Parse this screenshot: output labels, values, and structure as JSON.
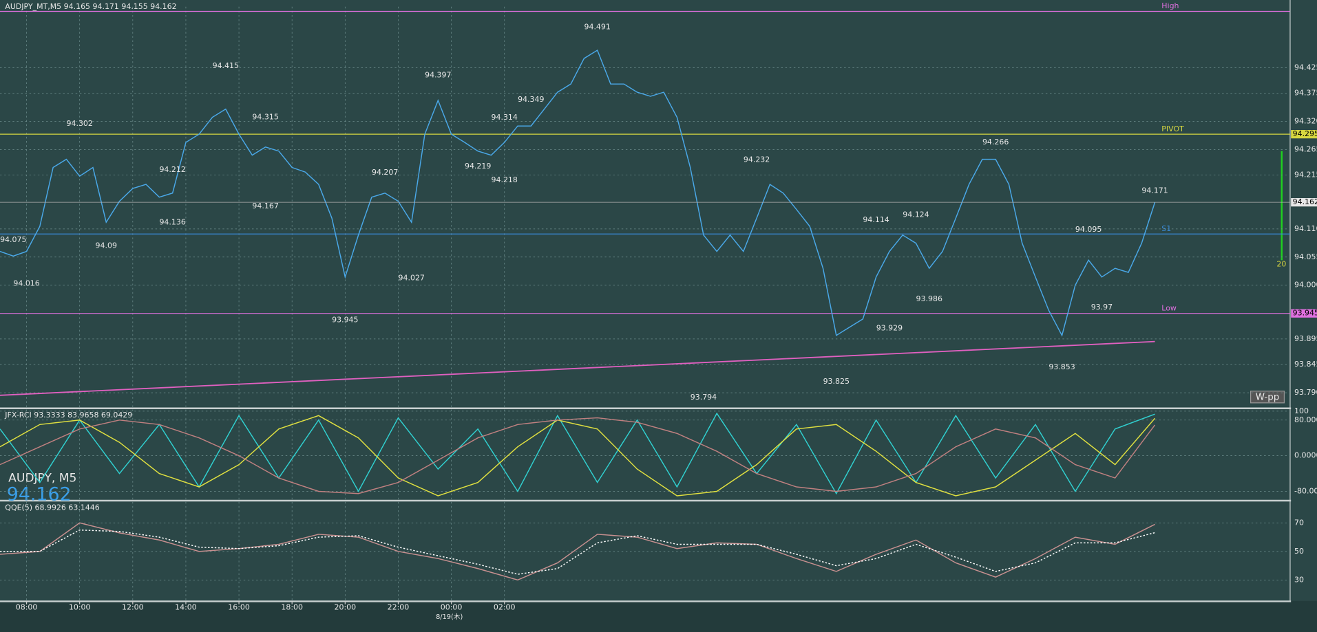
{
  "chart_data": [
    {
      "type": "line",
      "title": "AUDJPY_MT,M5  94.165 94.171 94.155 94.162",
      "series": [
        {
          "color": "#4aa8e8",
          "values": [
            94.066,
            94.057,
            94.066,
            94.115,
            94.23,
            94.246,
            94.213,
            94.23,
            94.123,
            94.164,
            94.189,
            94.197,
            94.172,
            94.18,
            94.279,
            94.295,
            94.328,
            94.344,
            94.295,
            94.254,
            94.27,
            94.262,
            94.23,
            94.221,
            94.197,
            94.131,
            94.016,
            94.098,
            94.172,
            94.18,
            94.164,
            94.123,
            94.295,
            94.361,
            94.295,
            94.279,
            94.262,
            94.254,
            94.279,
            94.311,
            94.311,
            94.344,
            94.377,
            94.393,
            94.443,
            94.459,
            94.393,
            94.393,
            94.377,
            94.369,
            94.377,
            94.328,
            94.23,
            94.098,
            94.066,
            94.098,
            94.066,
            94.131,
            94.197,
            94.18,
            94.148,
            94.115,
            94.033,
            93.902,
            93.918,
            93.934,
            94.016,
            94.066,
            94.098,
            94.082,
            94.033,
            94.066,
            94.131,
            94.197,
            94.246,
            94.246,
            94.197,
            94.082,
            94.016,
            93.951,
            93.902,
            94.0,
            94.049,
            94.016,
            94.033,
            94.025,
            94.082,
            94.162
          ]
        }
      ],
      "trendline": {
        "color": "#e060c0",
        "from": [
          0,
          93.785
        ],
        "to": [
          87,
          93.89
        ]
      },
      "levels": [
        {
          "name": "High",
          "value": 94.535,
          "color": "#e070e0",
          "axis_label": false
        },
        {
          "name": "PIVOT",
          "value": 94.295,
          "color": "#d8d840",
          "axis_label": true
        },
        {
          "name": "S1",
          "value": 94.1,
          "color": "#3a8ad8",
          "axis_label": false
        },
        {
          "name": "Low",
          "value": 93.945,
          "color": "#e070e0",
          "axis_label": true
        }
      ],
      "last": 94.162,
      "annotations": [
        {
          "i": 45,
          "value": 94.491,
          "kind": "high"
        },
        {
          "i": 17,
          "value": 94.415,
          "kind": "high"
        },
        {
          "i": 6,
          "value": 94.302,
          "kind": "high"
        },
        {
          "i": 20,
          "value": 94.315,
          "kind": "high"
        },
        {
          "i": 33,
          "value": 94.397,
          "kind": "high"
        },
        {
          "i": 38,
          "value": 94.314,
          "kind": "high"
        },
        {
          "i": 40,
          "value": 94.349,
          "kind": "high"
        },
        {
          "i": 57,
          "value": 94.232,
          "kind": "high"
        },
        {
          "i": 75,
          "value": 94.266,
          "kind": "high"
        },
        {
          "i": 87,
          "value": 94.171,
          "kind": "high"
        },
        {
          "i": 13,
          "value": 94.212,
          "kind": "high"
        },
        {
          "i": 29,
          "value": 94.207,
          "kind": "high"
        },
        {
          "i": 36,
          "value": 94.219,
          "kind": "high"
        },
        {
          "i": 38,
          "value": 94.218,
          "kind": "low"
        },
        {
          "i": 66,
          "value": 94.114,
          "kind": "high"
        },
        {
          "i": 69,
          "value": 94.124,
          "kind": "high"
        },
        {
          "i": 82,
          "value": 94.095,
          "kind": "high"
        },
        {
          "i": 1,
          "value": 94.075,
          "kind": "high"
        },
        {
          "i": 2,
          "value": 94.016,
          "kind": "low"
        },
        {
          "i": 8,
          "value": 94.09,
          "kind": "low"
        },
        {
          "i": 13,
          "value": 94.136,
          "kind": "low"
        },
        {
          "i": 20,
          "value": 94.167,
          "kind": "low"
        },
        {
          "i": 26,
          "value": 93.945,
          "kind": "low"
        },
        {
          "i": 31,
          "value": 94.027,
          "kind": "low"
        },
        {
          "i": 53,
          "value": 93.794,
          "kind": "low"
        },
        {
          "i": 63,
          "value": 93.825,
          "kind": "low"
        },
        {
          "i": 67,
          "value": 93.929,
          "kind": "low"
        },
        {
          "i": 70,
          "value": 93.986,
          "kind": "low"
        },
        {
          "i": 80,
          "value": 93.853,
          "kind": "low"
        },
        {
          "i": 83,
          "value": 93.97,
          "kind": "low"
        }
      ],
      "ylim": [
        93.762,
        94.544
      ],
      "yticks": [
        94.425,
        94.375,
        {
          "value": 94.32,
          "label": "94.320"
        },
        94.265,
        94.215,
        {
          "value": 94.11,
          "label": "94.110"
        },
        94.055,
        {
          "value": 94,
          "label": "94.000"
        },
        93.895,
        93.845,
        {
          "value": 93.79,
          "label": "93.790"
        }
      ],
      "xticks": [
        {
          "value": 2,
          "label": "08:00"
        },
        {
          "value": 6,
          "label": "10:00"
        },
        {
          "value": 10,
          "label": "12:00"
        },
        {
          "value": 14,
          "label": "14:00"
        },
        {
          "value": 18,
          "label": "16:00"
        },
        {
          "value": 22,
          "label": "18:00"
        },
        {
          "value": 26,
          "label": "20:00"
        },
        {
          "value": 30,
          "label": "22:00"
        },
        {
          "value": 34,
          "label": "00:00"
        },
        {
          "value": 38,
          "label": "02:00"
        }
      ],
      "grid": true
    },
    {
      "type": "line",
      "title": "JFX-RCI 93.3333 83.9658 69.0429",
      "series": [
        {
          "color": "#30d0d0",
          "values": [
            60,
            -60,
            80,
            -40,
            70,
            -70,
            90,
            -50,
            80,
            -80,
            85,
            -30,
            60,
            -80,
            90,
            -60,
            80,
            -70,
            95,
            -40,
            70,
            -85,
            80,
            -60,
            90,
            -50,
            70,
            -80,
            60,
            93.3333
          ]
        },
        {
          "color": "#e0e040",
          "values": [
            20,
            70,
            80,
            30,
            -40,
            -70,
            -20,
            60,
            90,
            40,
            -50,
            -90,
            -60,
            20,
            80,
            60,
            -30,
            -90,
            -80,
            -20,
            60,
            70,
            10,
            -60,
            -90,
            -70,
            -10,
            50,
            -20,
            83.9658
          ]
        },
        {
          "color": "#c08080",
          "values": [
            -20,
            20,
            60,
            80,
            70,
            40,
            0,
            -50,
            -80,
            -85,
            -60,
            -10,
            40,
            70,
            80,
            85,
            75,
            50,
            10,
            -40,
            -70,
            -80,
            -70,
            -40,
            20,
            60,
            40,
            -20,
            -50,
            69.0429
          ]
        }
      ],
      "ylim": [
        -98,
        103.5
      ],
      "yticks": [
        100,
        {
          "value": 80,
          "label": "80.0000"
        },
        {
          "value": 0,
          "label": "0.0000"
        },
        {
          "value": -80,
          "label": "-80.0000"
        }
      ],
      "grid": true
    },
    {
      "type": "line",
      "title": "QQE(5) 68.9926 63.1446",
      "series": [
        {
          "color": "#c89090",
          "values": [
            48,
            50,
            70,
            63,
            58,
            50,
            52,
            55,
            62,
            60,
            50,
            45,
            38,
            30,
            42,
            62,
            60,
            52,
            56,
            55,
            45,
            36,
            48,
            58,
            42,
            32,
            45,
            60,
            55,
            68.9926
          ]
        },
        {
          "color": "#ffffff",
          "dash": true,
          "values": [
            50,
            50,
            65,
            64,
            60,
            53,
            52,
            54,
            60,
            61,
            53,
            47,
            41,
            34,
            38,
            56,
            61,
            55,
            55,
            55,
            48,
            40,
            45,
            55,
            46,
            36,
            42,
            56,
            56,
            63.1446
          ]
        }
      ],
      "ylim": [
        15.9,
        84.7
      ],
      "yticks": [
        70,
        50,
        30
      ],
      "grid": true
    }
  ],
  "overlay": {
    "symbol": "AUDJPY, M5",
    "price": "94.162",
    "button": "W-pp",
    "bar_label": "20",
    "date": "8/19(木)"
  }
}
